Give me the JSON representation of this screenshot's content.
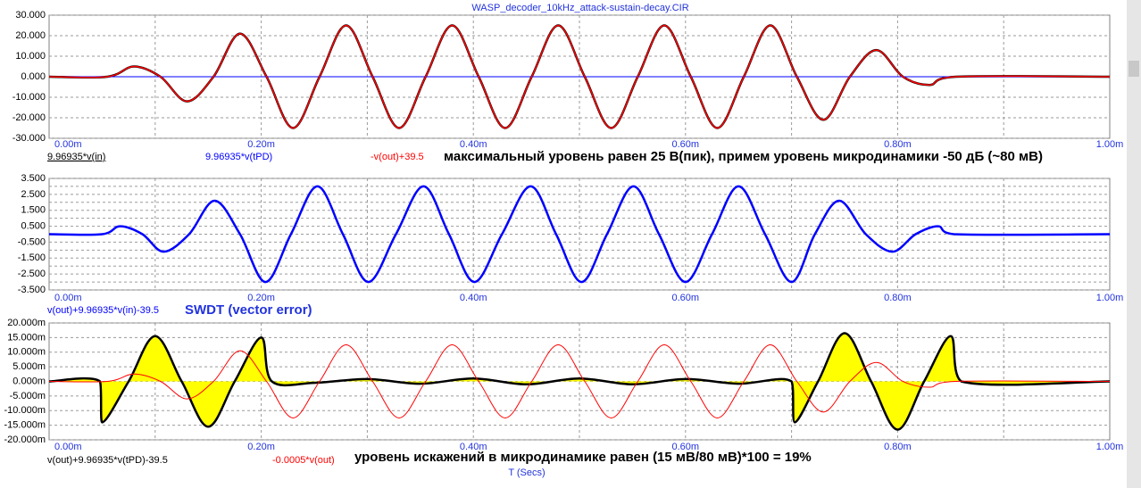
{
  "title": "WASP_decoder_10kHz_attack-sustain-decay.CIR",
  "xlabel": "T (Secs)",
  "chart_data": [
    {
      "type": "line",
      "annotation": "максимальный уровень равен 25 В(пик), примем уровень микродинамики -50 дБ (~80 мВ)",
      "annotation_color": "#000000",
      "x": [
        0,
        0.055,
        0.08,
        0.105,
        0.13,
        0.155,
        0.18,
        0.205,
        0.23,
        0.255,
        0.28,
        0.305,
        0.33,
        0.355,
        0.38,
        0.405,
        0.43,
        0.455,
        0.48,
        0.505,
        0.53,
        0.555,
        0.58,
        0.605,
        0.63,
        0.655,
        0.68,
        0.705,
        0.73,
        0.755,
        0.78,
        0.805,
        0.83,
        0.855,
        1.0
      ],
      "series": [
        {
          "name": "9.96935*v(in)",
          "color": "#000000",
          "line_width": 2.5,
          "values": [
            0,
            0,
            5,
            0,
            -12,
            0,
            21,
            0,
            -25,
            0,
            25,
            0,
            -25,
            0,
            25,
            0,
            -25,
            0,
            25,
            0,
            -25,
            0,
            25,
            0,
            -25,
            0,
            25,
            0,
            -21,
            0,
            13,
            0,
            -4,
            0,
            0
          ]
        },
        {
          "name": "9.96935*v(tPD)",
          "color": "#0000ff",
          "line_width": 1,
          "values": [
            0,
            0,
            0,
            0,
            0,
            0,
            0,
            0,
            0,
            0,
            0,
            0,
            0,
            0,
            0,
            0,
            0,
            0,
            0,
            0,
            0,
            0,
            0,
            0,
            0,
            0,
            0,
            0,
            0,
            0,
            0,
            0,
            0,
            0,
            0
          ]
        },
        {
          "name": "-v(out)+39.5",
          "color": "#ff0000",
          "line_width": 1.5,
          "values": [
            0,
            0,
            5,
            0,
            -12,
            0,
            21,
            0,
            -25,
            0,
            25,
            0,
            -25,
            0,
            25,
            0,
            -25,
            0,
            25,
            0,
            -25,
            0,
            25,
            0,
            -25,
            0,
            25,
            0,
            -21,
            0,
            13,
            0,
            -4,
            0,
            0
          ]
        }
      ],
      "xlim": [
        0,
        1.0
      ],
      "xticks": [
        {
          "value": 0,
          "label": "0.00m"
        },
        {
          "value": 0.2,
          "label": "0.20m"
        },
        {
          "value": 0.4,
          "label": "0.40m"
        },
        {
          "value": 0.6,
          "label": "0.60m"
        },
        {
          "value": 0.8,
          "label": "0.80m"
        },
        {
          "value": 1.0,
          "label": "1.00m"
        }
      ],
      "xminorticks": [
        0.1,
        0.3,
        0.5,
        0.7,
        0.9
      ],
      "ylim": [
        -30,
        30
      ],
      "yticks": [
        {
          "value": 30,
          "label": "30.000"
        },
        {
          "value": 20,
          "label": "20.000"
        },
        {
          "value": 10,
          "label": "10.000"
        },
        {
          "value": 0,
          "label": "0.000"
        },
        {
          "value": -10,
          "label": "-10.000"
        },
        {
          "value": -20,
          "label": "-20.000"
        },
        {
          "value": -30,
          "label": "-30.000"
        }
      ],
      "grid": true
    },
    {
      "type": "line",
      "annotation": "SWDT (vector error)",
      "annotation_color": "#2233dd",
      "x": [
        0,
        0.05,
        0.067,
        0.088,
        0.108,
        0.132,
        0.156,
        0.18,
        0.204,
        0.228,
        0.253,
        0.277,
        0.301,
        0.327,
        0.353,
        0.377,
        0.401,
        0.427,
        0.454,
        0.478,
        0.502,
        0.526,
        0.551,
        0.575,
        0.6,
        0.625,
        0.65,
        0.675,
        0.7,
        0.722,
        0.745,
        0.77,
        0.795,
        0.817,
        0.838,
        0.853,
        1.0
      ],
      "series": [
        {
          "name": "v(out)+9.96935*v(in)-39.5",
          "color": "#0000ff",
          "line_width": 2.5,
          "values": [
            0,
            0,
            0.5,
            0,
            -1.1,
            0,
            2.1,
            0,
            -3,
            0,
            3,
            0,
            -3,
            0,
            3,
            0,
            -3,
            0,
            3,
            0,
            -3,
            0,
            3,
            0,
            -3,
            0,
            3,
            0,
            -3,
            0,
            2.1,
            0,
            -1.1,
            0,
            0.5,
            0,
            0
          ]
        }
      ],
      "xlim": [
        0,
        1.0
      ],
      "xticks": [
        {
          "value": 0,
          "label": "0.00m"
        },
        {
          "value": 0.2,
          "label": "0.20m"
        },
        {
          "value": 0.4,
          "label": "0.40m"
        },
        {
          "value": 0.6,
          "label": "0.60m"
        },
        {
          "value": 0.8,
          "label": "0.80m"
        },
        {
          "value": 1.0,
          "label": "1.00m"
        }
      ],
      "xminorticks": [
        0.1,
        0.3,
        0.5,
        0.7,
        0.9
      ],
      "ylim": [
        -3.5,
        3.5
      ],
      "yticks": [
        {
          "value": 3.5,
          "label": "3.500"
        },
        {
          "value": 2.5,
          "label": "2.500"
        },
        {
          "value": 1.5,
          "label": "1.500"
        },
        {
          "value": 0.5,
          "label": "0.500"
        },
        {
          "value": -0.5,
          "label": "-0.500"
        },
        {
          "value": -1.5,
          "label": "-1.500"
        },
        {
          "value": -2.5,
          "label": "-2.500"
        },
        {
          "value": -3.5,
          "label": "-3.500"
        }
      ],
      "yminorticks": [
        3,
        2,
        1,
        0,
        -1,
        -2,
        -3
      ],
      "grid": true
    },
    {
      "type": "line",
      "annotation": "уровень искажений в микродинамике равен (15 мВ/80 мВ)*100 = 19%",
      "annotation_color": "#000000",
      "series": [
        {
          "name": "v(out)+9.96935*v(tPD)-39.5",
          "color": "#000000",
          "line_width": 2.5,
          "fill": "#ffff00",
          "x": [
            0,
            0.048,
            0.05,
            0.075,
            0.1,
            0.125,
            0.15,
            0.175,
            0.2,
            0.21,
            0.25,
            0.3,
            0.35,
            0.4,
            0.45,
            0.5,
            0.55,
            0.6,
            0.65,
            0.7,
            0.703,
            0.725,
            0.75,
            0.775,
            0.8,
            0.825,
            0.85,
            0.86,
            1.0
          ],
          "values": [
            0,
            0,
            -14,
            0,
            15.5,
            0,
            -15.5,
            0,
            15,
            0,
            -0.5,
            0.8,
            -0.8,
            1,
            -1,
            1,
            -1,
            0.8,
            -0.8,
            0,
            -14,
            0,
            16.5,
            0,
            -16.5,
            0,
            15.5,
            0,
            0
          ]
        },
        {
          "name": "-0.0005*v(out)",
          "color": "#ff0000",
          "line_width": 1,
          "x": [
            0,
            0.055,
            0.08,
            0.105,
            0.13,
            0.155,
            0.18,
            0.205,
            0.23,
            0.255,
            0.28,
            0.305,
            0.33,
            0.355,
            0.38,
            0.405,
            0.43,
            0.455,
            0.48,
            0.505,
            0.53,
            0.555,
            0.58,
            0.605,
            0.63,
            0.655,
            0.68,
            0.705,
            0.73,
            0.755,
            0.78,
            0.805,
            0.83,
            0.855,
            1.0
          ],
          "values": [
            0,
            0,
            2.5,
            0,
            -6,
            0,
            10.5,
            0,
            -12.5,
            0,
            12.5,
            0,
            -12.5,
            0,
            12.5,
            0,
            -12.5,
            0,
            12.5,
            0,
            -12.5,
            0,
            12.5,
            0,
            -12.5,
            0,
            12.5,
            0,
            -10.5,
            0,
            6.5,
            0,
            -2,
            0,
            0
          ]
        }
      ],
      "xlim": [
        0,
        1.0
      ],
      "xticks": [
        {
          "value": 0,
          "label": "0.00m"
        },
        {
          "value": 0.2,
          "label": "0.20m"
        },
        {
          "value": 0.4,
          "label": "0.40m"
        },
        {
          "value": 0.6,
          "label": "0.60m"
        },
        {
          "value": 0.8,
          "label": "0.80m"
        },
        {
          "value": 1.0,
          "label": "1.00m"
        }
      ],
      "xminorticks": [
        0.1,
        0.3,
        0.5,
        0.7,
        0.9
      ],
      "ylim": [
        -20,
        20
      ],
      "yticks": [
        {
          "value": 20,
          "label": "20.000m"
        },
        {
          "value": 15,
          "label": "15.000m"
        },
        {
          "value": 10,
          "label": "10.000m"
        },
        {
          "value": 5,
          "label": "5.000m"
        },
        {
          "value": 0,
          "label": "0.000m"
        },
        {
          "value": -5,
          "label": "-5.000m"
        },
        {
          "value": -10,
          "label": "-10.000m"
        },
        {
          "value": -15,
          "label": "-15.000m"
        },
        {
          "value": -20,
          "label": "-20.000m"
        }
      ],
      "grid": true
    }
  ]
}
